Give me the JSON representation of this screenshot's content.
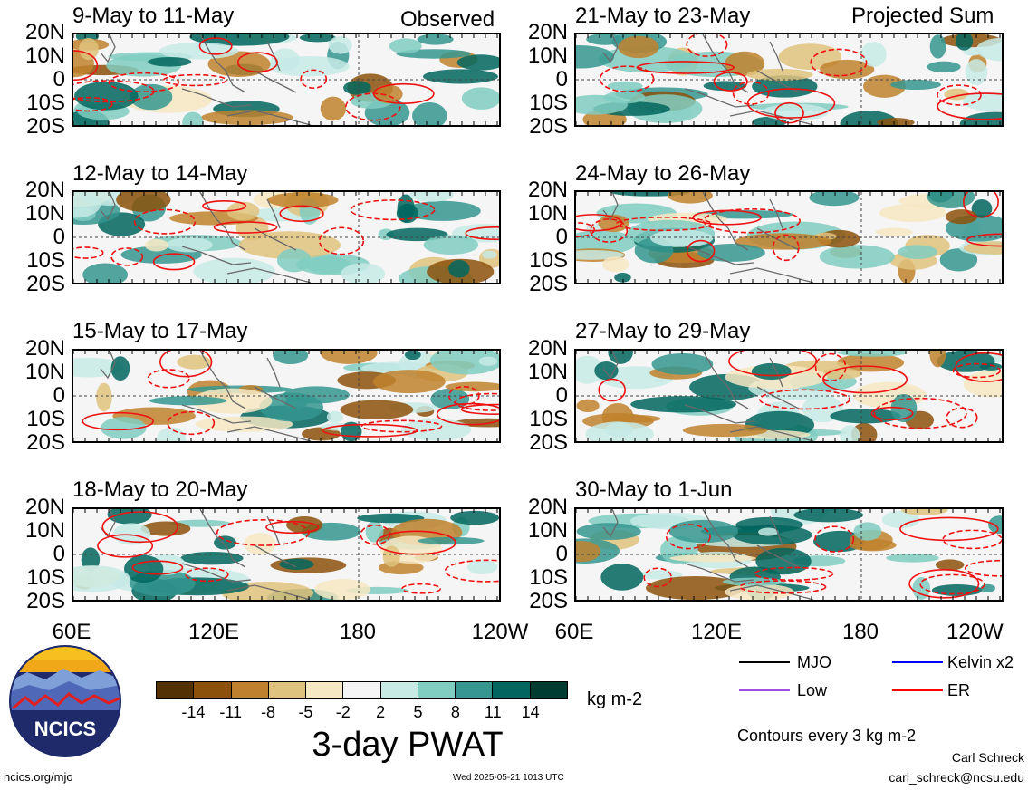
{
  "panels_left": [
    {
      "title": "9-May to 11-May",
      "corner": "Observed"
    },
    {
      "title": "12-May to 14-May",
      "corner": ""
    },
    {
      "title": "15-May to 17-May",
      "corner": ""
    },
    {
      "title": "18-May to 20-May",
      "corner": ""
    }
  ],
  "panels_right": [
    {
      "title": "21-May to 23-May",
      "corner": "Projected Sum"
    },
    {
      "title": "24-May to 26-May",
      "corner": ""
    },
    {
      "title": "27-May to 29-May",
      "corner": ""
    },
    {
      "title": "30-May to 1-Jun",
      "corner": ""
    }
  ],
  "lat_labels": [
    "20N",
    "10N",
    "0",
    "10S",
    "20S"
  ],
  "lon_labels_left": [
    "60E",
    "120E",
    "180",
    "120W"
  ],
  "lon_labels_right": [
    "60E",
    "120E",
    "180",
    "120W"
  ],
  "colorbar": {
    "colors": [
      "#543005",
      "#8c510a",
      "#bf812d",
      "#dfc27d",
      "#f6e8c3",
      "#f5f5f5",
      "#c7eae5",
      "#80cdc1",
      "#35978f",
      "#01665e",
      "#003c30"
    ],
    "ticks": [
      "-14",
      "-11",
      "-8",
      "-5",
      "-2",
      "2",
      "5",
      "8",
      "11",
      "14"
    ],
    "units": "kg m-2",
    "title": "3-day PWAT"
  },
  "legend": {
    "items": [
      {
        "label": "MJO",
        "color": "#000000"
      },
      {
        "label": "Kelvin x2",
        "color": "#0000ff"
      },
      {
        "label": "Low",
        "color": "#a050e0"
      },
      {
        "label": "ER",
        "color": "#ff0000"
      }
    ],
    "contours_note": "Contours every 3 kg m-2"
  },
  "logo_text": "NCICS",
  "footer": {
    "url": "ncics.org/mjo",
    "timestamp": "Wed 2025-05-21 1013 UTC",
    "author": "Carl Schreck",
    "email": "carl_schreck@ncsu.edu"
  }
}
